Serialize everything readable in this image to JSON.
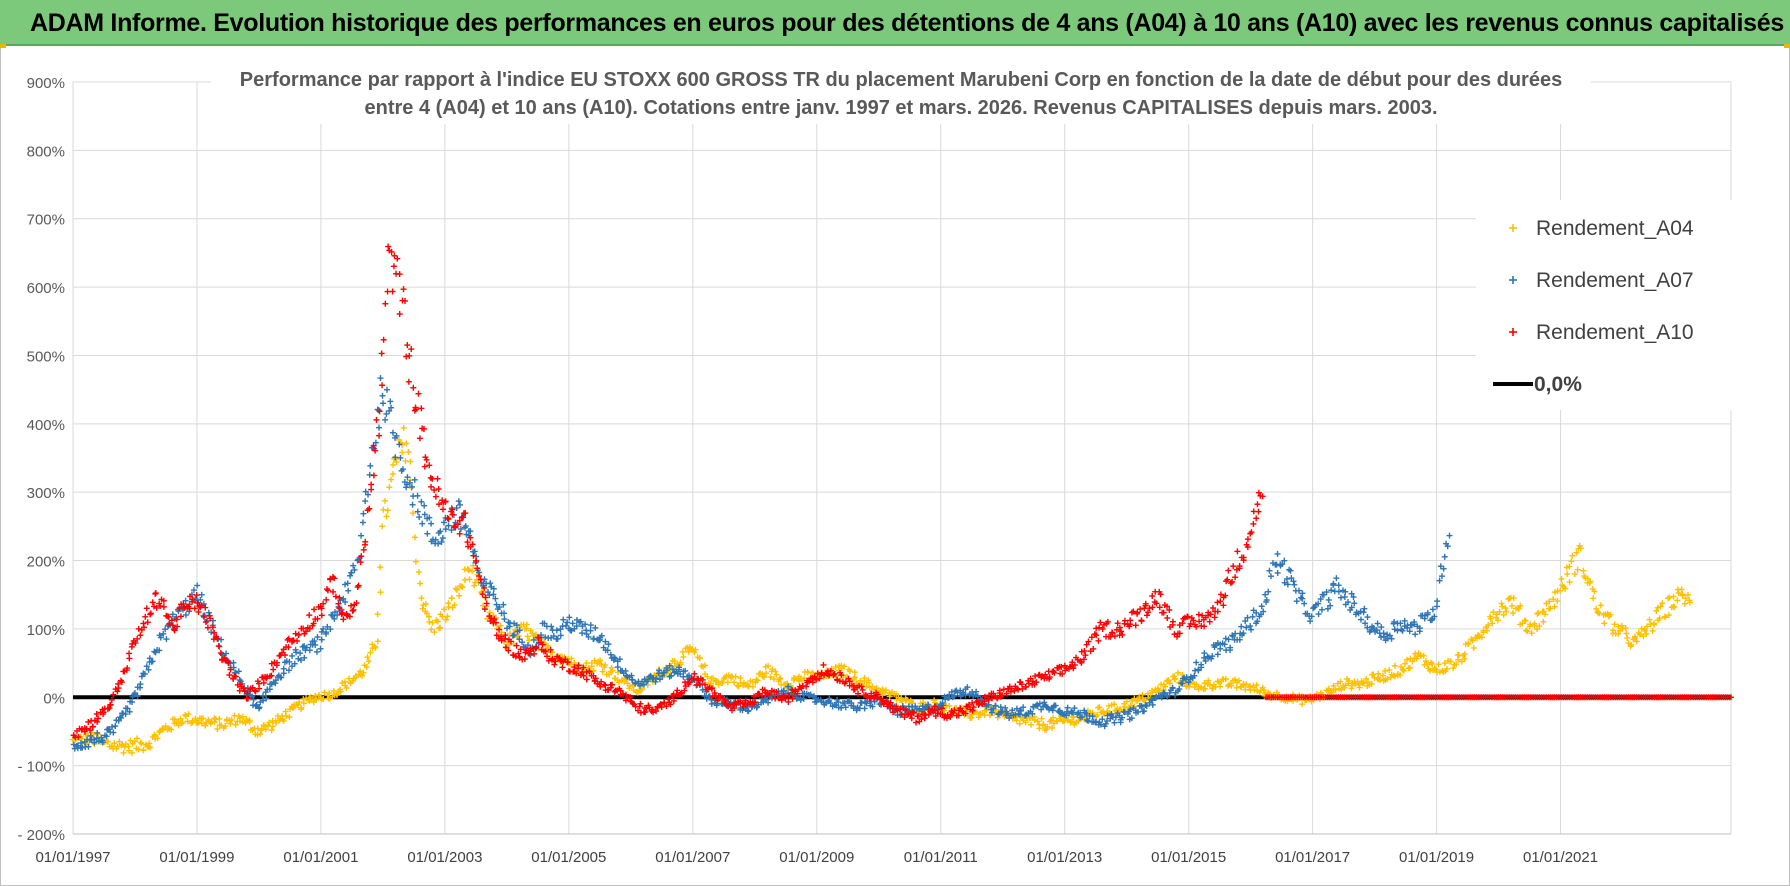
{
  "banner": {
    "title": "ADAM Informe. Evolution historique des performances en euros pour des détentions de 4 ans (A04) à 10 ans (A10) avec les revenus connus capitalisés"
  },
  "chart_data": {
    "type": "scatter",
    "title_line1": "Performance par rapport à l'indice EU STOXX 600 GROSS TR  du placement Marubeni Corp en fonction de la date de début pour des durées",
    "title_line2": "entre 4 (A04) et 10 ans (A10).  Cotations entre janv. 1997 et mars. 2026.  Revenus CAPITALISES depuis mars. 2003.",
    "xlabel": "",
    "ylabel": "",
    "x_range": [
      1997.0,
      2023.75
    ],
    "ylim": [
      -200,
      900
    ],
    "y_ticks": [
      -200,
      -100,
      0,
      100,
      200,
      300,
      400,
      500,
      600,
      700,
      800,
      900
    ],
    "y_tick_labels": [
      "- 200%",
      "- 100%",
      "0%",
      "100%",
      "200%",
      "300%",
      "400%",
      "500%",
      "600%",
      "700%",
      "800%",
      "900%"
    ],
    "x_ticks": [
      1997,
      1999,
      2001,
      2003,
      2005,
      2007,
      2009,
      2011,
      2013,
      2015,
      2017,
      2019,
      2021
    ],
    "x_tick_labels": [
      "01/01/1997",
      "01/01/1999",
      "01/01/2001",
      "01/01/2003",
      "01/01/2005",
      "01/01/2007",
      "01/01/2009",
      "01/01/2011",
      "01/01/2013",
      "01/01/2015",
      "01/01/2017",
      "01/01/2019",
      "01/01/2021"
    ],
    "grid": true,
    "legend_position": "top-right",
    "series": [
      {
        "name": "Rendement_A04",
        "color": "#ffc000",
        "x": [
          1997.0,
          1997.3,
          1997.6,
          1997.9,
          1998.2,
          1998.5,
          1998.8,
          1999.1,
          1999.4,
          1999.7,
          2000.0,
          2000.3,
          2000.6,
          2000.9,
          2001.2,
          2001.5,
          2001.7,
          2001.9,
          2002.0,
          2002.2,
          2002.4,
          2002.6,
          2002.8,
          2003.0,
          2003.2,
          2003.4,
          2003.7,
          2004.0,
          2004.3,
          2004.6,
          2004.9,
          2005.2,
          2005.5,
          2005.8,
          2006.1,
          2006.4,
          2006.7,
          2007.0,
          2007.3,
          2007.6,
          2007.9,
          2008.2,
          2008.5,
          2008.8,
          2009.1,
          2009.4,
          2009.7,
          2010.0,
          2010.3,
          2010.6,
          2010.9,
          2011.2,
          2011.5,
          2011.8,
          2012.1,
          2012.4,
          2012.7,
          2013.0,
          2013.3,
          2013.6,
          2013.9,
          2014.2,
          2014.5,
          2014.8,
          2015.1,
          2015.4,
          2015.7,
          2016.0,
          2016.3,
          2016.6,
          2016.9,
          2017.2,
          2017.5,
          2017.8,
          2018.1,
          2018.4,
          2018.7,
          2019.0,
          2019.3,
          2019.6,
          2019.9,
          2020.2,
          2020.5,
          2020.8,
          2021.0,
          2021.3,
          2021.6,
          2021.9,
          2022.2,
          2022.5,
          2022.8,
          2023.0,
          2023.1
        ],
        "values": [
          -65,
          -60,
          -70,
          -72,
          -68,
          -45,
          -30,
          -35,
          -40,
          -30,
          -50,
          -35,
          -15,
          0,
          5,
          25,
          40,
          80,
          250,
          340,
          380,
          150,
          100,
          120,
          150,
          190,
          120,
          80,
          100,
          70,
          60,
          40,
          50,
          30,
          10,
          30,
          50,
          70,
          20,
          30,
          15,
          40,
          20,
          30,
          30,
          40,
          25,
          10,
          0,
          -15,
          -10,
          -20,
          -25,
          -20,
          -30,
          -35,
          -40,
          -35,
          -30,
          -20,
          -15,
          -5,
          10,
          30,
          15,
          20,
          20,
          15,
          5,
          0,
          -5,
          5,
          20,
          20,
          30,
          40,
          60,
          40,
          50,
          80,
          120,
          140,
          100,
          130,
          160,
          210,
          130,
          100,
          80,
          110,
          140,
          150,
          130
        ]
      },
      {
        "name": "Rendement_A07",
        "color": "#2e75b6",
        "x": [
          1997.0,
          1997.2,
          1997.4,
          1997.6,
          1997.8,
          1998.0,
          1998.2,
          1998.4,
          1998.6,
          1998.8,
          1999.0,
          1999.2,
          1999.4,
          1999.6,
          1999.8,
          2000.0,
          2000.2,
          2000.4,
          2000.6,
          2000.8,
          2001.0,
          2001.2,
          2001.4,
          2001.6,
          2001.8,
          2002.0,
          2002.2,
          2002.4,
          2002.6,
          2002.8,
          2003.0,
          2003.2,
          2003.4,
          2003.6,
          2003.8,
          2004.0,
          2004.2,
          2004.4,
          2004.6,
          2004.8,
          2005.0,
          2005.2,
          2005.5,
          2005.8,
          2006.1,
          2006.4,
          2006.7,
          2007.0,
          2007.3,
          2007.6,
          2007.9,
          2008.2,
          2008.5,
          2008.8,
          2009.1,
          2009.4,
          2009.7,
          2010.0,
          2010.3,
          2010.6,
          2010.9,
          2011.2,
          2011.5,
          2011.8,
          2012.1,
          2012.4,
          2012.7,
          2013.0,
          2013.3,
          2013.6,
          2013.9,
          2014.2,
          2014.5,
          2014.8,
          2015.1,
          2015.4,
          2015.7,
          2016.0,
          2016.2,
          2016.4,
          2016.6,
          2016.8,
          2017.0,
          2017.2,
          2017.4,
          2017.6,
          2017.8,
          2018.0,
          2018.2,
          2018.4,
          2018.6,
          2018.8,
          2019.0,
          2019.1,
          2019.2
        ],
        "values": [
          -70,
          -65,
          -60,
          -55,
          -30,
          0,
          40,
          80,
          110,
          130,
          150,
          110,
          70,
          40,
          10,
          -20,
          20,
          40,
          60,
          70,
          80,
          120,
          150,
          200,
          350,
          450,
          380,
          320,
          280,
          230,
          250,
          270,
          240,
          160,
          150,
          110,
          90,
          70,
          100,
          90,
          110,
          100,
          90,
          50,
          20,
          30,
          40,
          30,
          -5,
          -10,
          -15,
          -5,
          10,
          0,
          -5,
          -10,
          -15,
          -5,
          -20,
          -20,
          -15,
          5,
          10,
          -15,
          -25,
          -20,
          -10,
          -20,
          -25,
          -35,
          -30,
          -20,
          0,
          10,
          40,
          70,
          80,
          110,
          130,
          200,
          180,
          140,
          120,
          140,
          160,
          140,
          120,
          100,
          90,
          110,
          100,
          110,
          130,
          200,
          250
        ]
      },
      {
        "name": "Rendement_A10",
        "color": "#ff0000",
        "x": [
          1997.0,
          1997.2,
          1997.4,
          1997.6,
          1997.8,
          1998.0,
          1998.2,
          1998.4,
          1998.6,
          1998.8,
          1999.0,
          1999.2,
          1999.4,
          1999.6,
          1999.8,
          2000.0,
          2000.2,
          2000.4,
          2000.6,
          2000.8,
          2001.0,
          2001.2,
          2001.4,
          2001.6,
          2001.8,
          2001.95,
          2002.1,
          2002.3,
          2002.5,
          2002.7,
          2002.9,
          2003.1,
          2003.3,
          2003.5,
          2003.7,
          2003.9,
          2004.1,
          2004.3,
          2004.5,
          2004.7,
          2004.9,
          2005.2,
          2005.5,
          2005.8,
          2006.1,
          2006.4,
          2006.7,
          2007.0,
          2007.3,
          2007.6,
          2007.9,
          2008.2,
          2008.5,
          2008.8,
          2009.1,
          2009.4,
          2009.7,
          2010.0,
          2010.3,
          2010.6,
          2010.9,
          2011.2,
          2011.5,
          2011.8,
          2012.1,
          2012.4,
          2012.7,
          2013.0,
          2013.3,
          2013.6,
          2013.9,
          2014.2,
          2014.5,
          2014.8,
          2015.1,
          2015.4,
          2015.7,
          2015.9,
          2016.1,
          2016.2
        ],
        "values": [
          -55,
          -45,
          -30,
          -10,
          30,
          80,
          120,
          150,
          100,
          130,
          140,
          110,
          60,
          30,
          0,
          20,
          40,
          70,
          90,
          110,
          130,
          170,
          110,
          150,
          300,
          420,
          650,
          580,
          450,
          350,
          290,
          260,
          260,
          200,
          120,
          90,
          70,
          60,
          80,
          60,
          50,
          40,
          20,
          10,
          -15,
          -20,
          0,
          30,
          10,
          -15,
          -10,
          10,
          -5,
          20,
          40,
          30,
          10,
          0,
          -20,
          -30,
          -20,
          -25,
          -15,
          0,
          10,
          20,
          30,
          40,
          60,
          100,
          100,
          120,
          150,
          100,
          110,
          120,
          180,
          220,
          280,
          300
        ]
      },
      {
        "name": "0,0%",
        "color": "#000000",
        "x": [
          1997.0,
          2023.75
        ],
        "values": [
          0,
          0
        ]
      }
    ]
  }
}
